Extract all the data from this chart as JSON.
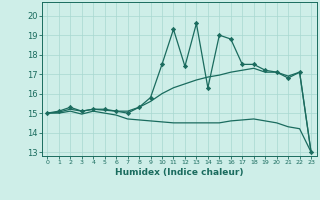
{
  "xlabel": "Humidex (Indice chaleur)",
  "xlim": [
    -0.5,
    23.5
  ],
  "ylim": [
    12.8,
    20.7
  ],
  "yticks": [
    13,
    14,
    15,
    16,
    17,
    18,
    19,
    20
  ],
  "xticks": [
    0,
    1,
    2,
    3,
    4,
    5,
    6,
    7,
    8,
    9,
    10,
    11,
    12,
    13,
    14,
    15,
    16,
    17,
    18,
    19,
    20,
    21,
    22,
    23
  ],
  "background_color": "#ceeee8",
  "grid_color": "#a8d8d0",
  "line_color": "#1a6b5e",
  "series_main": {
    "x": [
      0,
      1,
      2,
      3,
      4,
      5,
      6,
      7,
      8,
      9,
      10,
      11,
      12,
      13,
      14,
      15,
      16,
      17,
      18,
      19,
      20,
      21,
      22,
      23
    ],
    "y": [
      15.0,
      15.1,
      15.3,
      15.1,
      15.2,
      15.2,
      15.1,
      15.0,
      15.3,
      15.8,
      17.5,
      19.3,
      17.4,
      19.6,
      16.3,
      19.0,
      18.8,
      17.5,
      17.5,
      17.2,
      17.1,
      16.8,
      17.1,
      13.0
    ]
  },
  "series_trend1": {
    "x": [
      0,
      1,
      2,
      3,
      4,
      5,
      6,
      7,
      8,
      9,
      10,
      11,
      12,
      13,
      14,
      15,
      16,
      17,
      18,
      19,
      20,
      21,
      22,
      23
    ],
    "y": [
      15.0,
      15.05,
      15.2,
      15.1,
      15.2,
      15.15,
      15.1,
      15.1,
      15.3,
      15.6,
      16.0,
      16.3,
      16.5,
      16.7,
      16.85,
      16.95,
      17.1,
      17.2,
      17.3,
      17.1,
      17.1,
      16.9,
      17.1,
      13.0
    ]
  },
  "series_trend2": {
    "x": [
      0,
      1,
      2,
      3,
      4,
      5,
      6,
      7,
      8,
      9,
      10,
      11,
      12,
      13,
      14,
      15,
      16,
      17,
      18,
      19,
      20,
      21,
      22,
      23
    ],
    "y": [
      15.0,
      15.0,
      15.1,
      14.95,
      15.1,
      15.0,
      14.9,
      14.7,
      14.65,
      14.6,
      14.55,
      14.5,
      14.5,
      14.5,
      14.5,
      14.5,
      14.6,
      14.65,
      14.7,
      14.6,
      14.5,
      14.3,
      14.2,
      13.0
    ]
  }
}
